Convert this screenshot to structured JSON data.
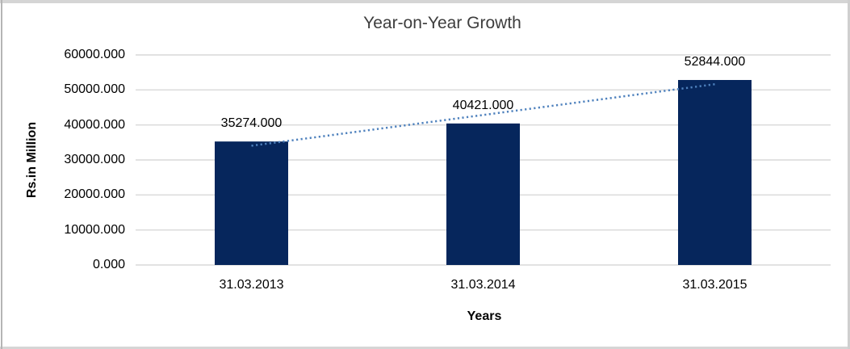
{
  "chart_data": {
    "type": "bar",
    "title": "Year-on-Year Growth",
    "categories": [
      "31.03.2013",
      "31.03.2014",
      "31.03.2015"
    ],
    "values": [
      35274,
      40421,
      52844
    ],
    "value_labels": [
      "35274.000",
      "40421.000",
      "52844.000"
    ],
    "xlabel": "Years",
    "ylabel": "Rs.in Million",
    "ylim": [
      0,
      60000
    ],
    "ytick_step": 10000,
    "ytick_labels": [
      "0.000",
      "10000.000",
      "20000.000",
      "30000.000",
      "40000.000",
      "50000.000",
      "60000.000"
    ],
    "grid": true,
    "legend": "none",
    "trendline": {
      "type": "linear",
      "style": "dotted"
    },
    "colors": {
      "bar": "#06265c",
      "trendline": "#4e81bd",
      "gridline": "#d9d9d9",
      "title_text": "#3d3d3d",
      "axis_text": "#000000"
    }
  }
}
